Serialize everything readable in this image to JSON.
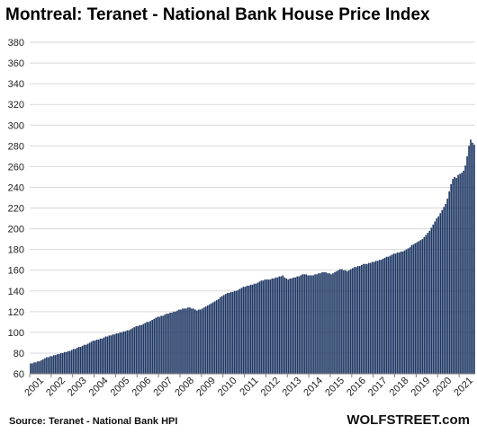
{
  "title": "Montreal: Teranet - National Bank House Price Index",
  "source": "Source: Teranet - National Bank HPI",
  "brand": "WOLFSTREET.com",
  "colors": {
    "bar": "#1f3864",
    "grid": "#d9d9d9",
    "axis": "#808080"
  },
  "chart_data": {
    "type": "bar",
    "title": "Montreal: Teranet - National Bank House Price Index",
    "xlabel": "",
    "ylabel": "",
    "ylim": [
      60,
      380
    ],
    "yticks": [
      60,
      80,
      100,
      120,
      140,
      160,
      180,
      200,
      220,
      240,
      260,
      280,
      300,
      320,
      340,
      360,
      380
    ],
    "grid": true,
    "x_tick_labels": [
      "2001",
      "2002",
      "2003",
      "2004",
      "2005",
      "2006",
      "2007",
      "2008",
      "2009",
      "2010",
      "2011",
      "2012",
      "2013",
      "2014",
      "2015",
      "2016",
      "2017",
      "2018",
      "2019",
      "2020",
      "2021"
    ],
    "frequency": "monthly",
    "series": [
      {
        "values_by_year": {
          "2001": [
            70,
            70,
            71,
            71,
            72,
            72,
            73,
            74,
            75,
            76,
            76,
            77
          ],
          "2002": [
            77,
            78,
            78,
            79,
            79,
            80,
            80,
            81,
            81,
            82,
            82,
            83
          ],
          "2003": [
            84,
            84,
            85,
            86,
            86,
            87,
            88,
            88,
            89,
            90,
            91,
            92
          ],
          "2004": [
            92,
            93,
            93,
            94,
            94,
            95,
            96,
            96,
            97,
            97,
            98,
            98
          ],
          "2005": [
            99,
            99,
            100,
            100,
            101,
            101,
            102,
            102,
            103,
            104,
            105,
            106
          ],
          "2006": [
            106,
            107,
            107,
            108,
            109,
            110,
            110,
            111,
            112,
            113,
            114,
            115
          ],
          "2007": [
            115,
            116,
            116,
            117,
            118,
            118,
            119,
            119,
            120,
            120,
            121,
            122
          ],
          "2008": [
            122,
            123,
            123,
            123,
            124,
            124,
            123,
            123,
            122,
            121,
            122,
            122
          ],
          "2009": [
            123,
            124,
            125,
            126,
            127,
            128,
            129,
            130,
            131,
            132,
            134,
            135
          ],
          "2010": [
            136,
            137,
            138,
            138,
            139,
            139,
            140,
            140,
            141,
            142,
            143,
            144
          ],
          "2011": [
            144,
            145,
            145,
            146,
            146,
            147,
            147,
            148,
            149,
            150,
            150,
            151
          ],
          "2012": [
            151,
            151,
            151,
            152,
            152,
            153,
            153,
            154,
            154,
            155,
            153,
            152
          ],
          "2013": [
            151,
            152,
            152,
            153,
            153,
            154,
            154,
            155,
            156,
            156,
            156,
            155
          ],
          "2014": [
            155,
            155,
            155,
            156,
            156,
            157,
            157,
            158,
            158,
            158,
            157,
            157
          ],
          "2015": [
            156,
            157,
            158,
            159,
            160,
            161,
            161,
            160,
            160,
            159,
            160,
            161
          ],
          "2016": [
            162,
            163,
            163,
            164,
            164,
            165,
            166,
            166,
            166,
            167,
            167,
            168
          ],
          "2017": [
            168,
            169,
            169,
            170,
            170,
            171,
            172,
            173,
            173,
            174,
            175,
            176
          ],
          "2018": [
            176,
            177,
            177,
            178,
            178,
            179,
            180,
            181,
            182,
            184,
            185,
            186
          ],
          "2019": [
            187,
            188,
            189,
            190,
            192,
            194,
            196,
            198,
            201,
            204,
            207,
            210
          ],
          "2020": [
            212,
            215,
            218,
            221,
            224,
            229,
            236,
            243,
            248,
            250,
            249,
            252
          ],
          "2021": [
            253,
            254,
            256,
            261,
            270,
            280,
            286,
            283,
            281
          ]
        }
      }
    ]
  }
}
